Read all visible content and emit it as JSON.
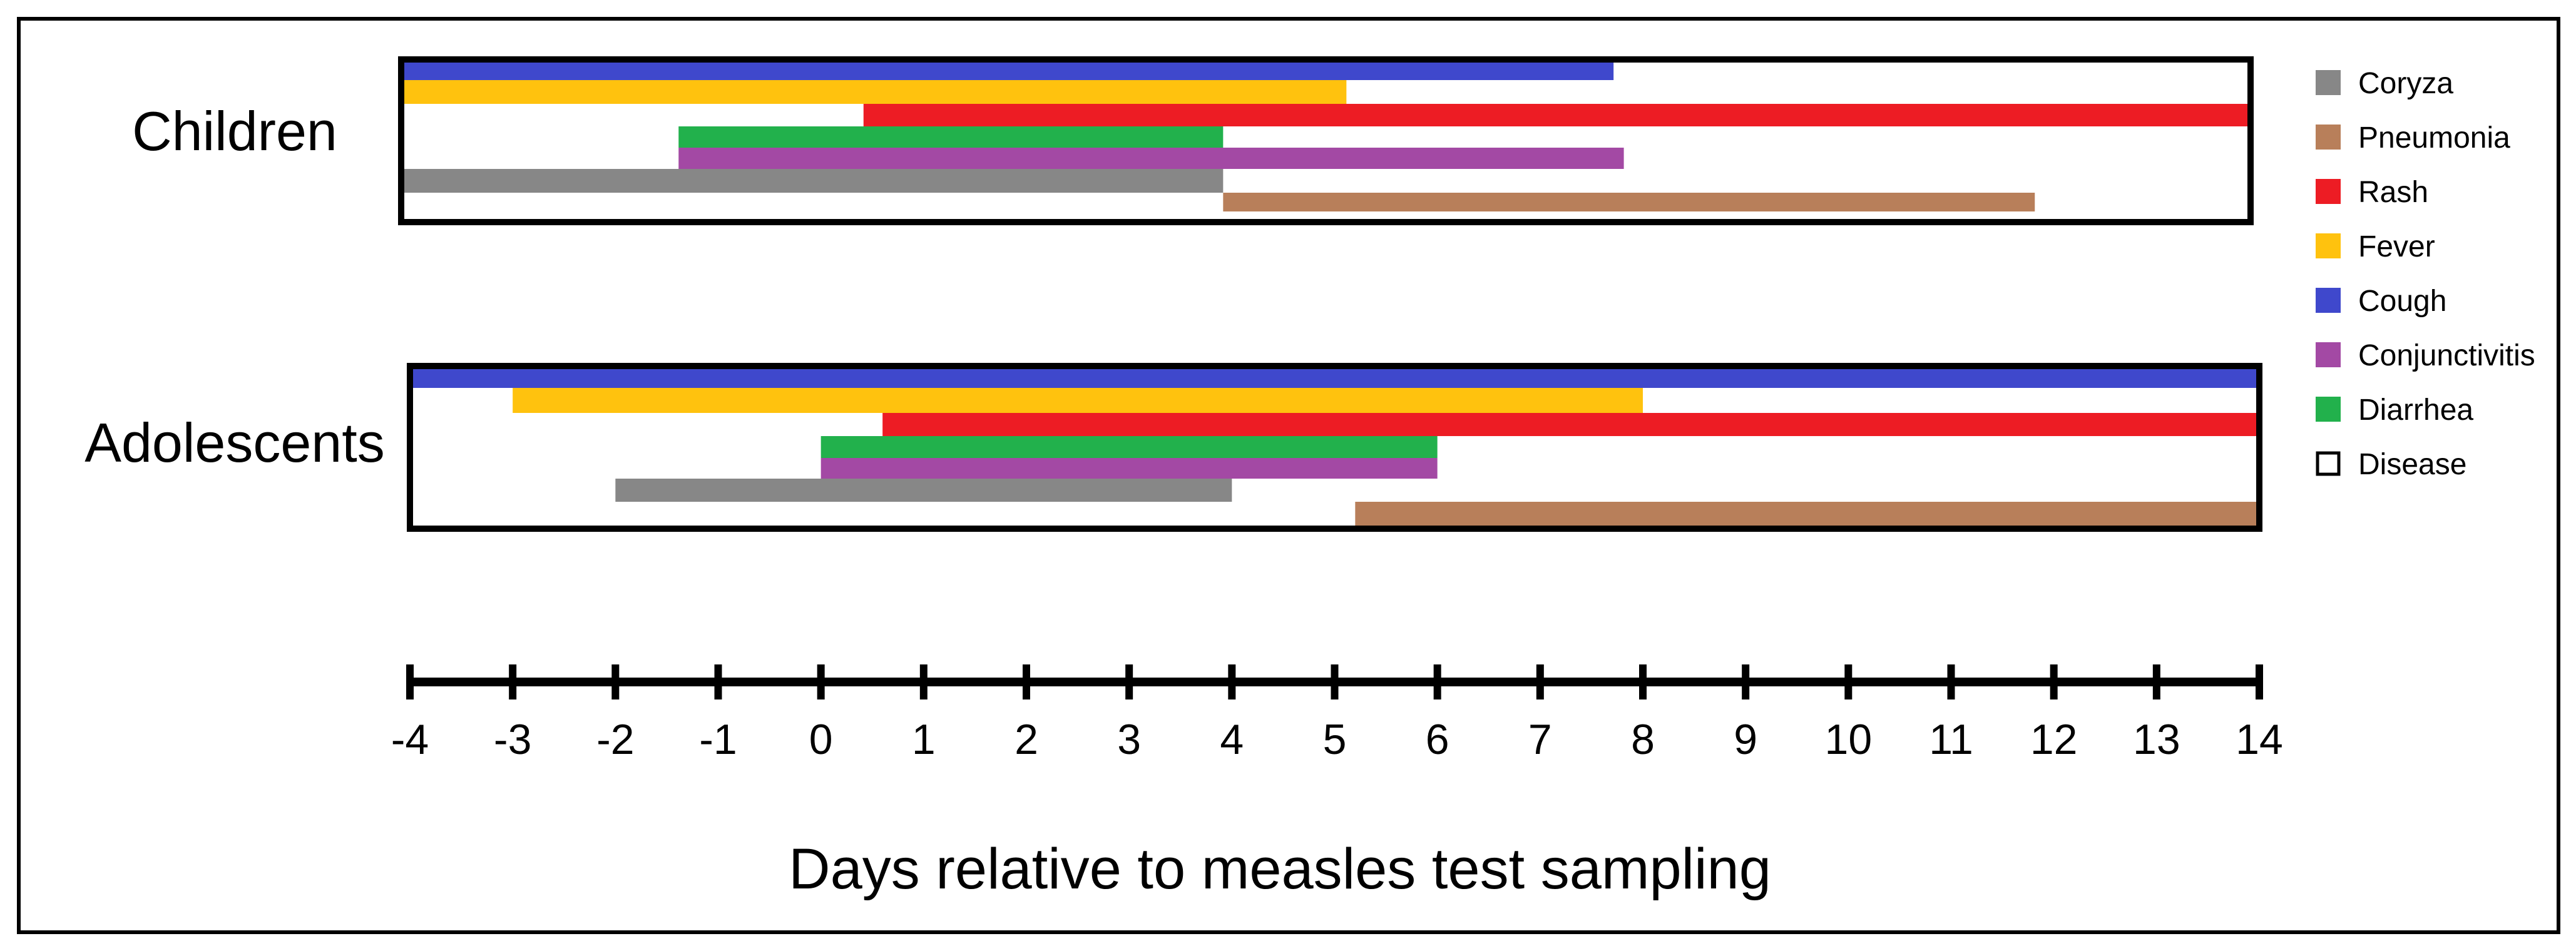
{
  "chart_data": {
    "type": "gantt",
    "xlabel": "Days relative to measles test sampling",
    "xlim": [
      -4,
      14
    ],
    "ticks": [
      "-4",
      "-3",
      "-2",
      "-1",
      "0",
      "1",
      "2",
      "3",
      "4",
      "5",
      "6",
      "7",
      "8",
      "9",
      "10",
      "11",
      "12",
      "13",
      "14"
    ],
    "legend": [
      {
        "name": "Coryza",
        "color": "#878787",
        "swatch": "filled"
      },
      {
        "name": "Pneumonia",
        "color": "#b87f5a",
        "swatch": "filled"
      },
      {
        "name": "Rash",
        "color": "#ed1c24",
        "swatch": "filled"
      },
      {
        "name": "Fever",
        "color": "#ffc20e",
        "swatch": "filled"
      },
      {
        "name": "Cough",
        "color": "#3f48cc",
        "swatch": "filled"
      },
      {
        "name": "Conjunctivitis",
        "color": "#a349a4",
        "swatch": "filled"
      },
      {
        "name": "Diarrhea",
        "color": "#22b14c",
        "swatch": "filled"
      },
      {
        "name": "Disease",
        "color": "#ffffff",
        "swatch": "outline"
      }
    ],
    "groups": [
      {
        "label": "Children",
        "disease": [
          -4,
          14
        ],
        "bars": [
          {
            "symptom": "Cough",
            "start": -4,
            "end": 7.8
          },
          {
            "symptom": "Fever",
            "start": -4,
            "end": 5.2
          },
          {
            "symptom": "Rash",
            "start": 0.5,
            "end": 14
          },
          {
            "symptom": "Diarrhea",
            "start": -1.3,
            "end": 4
          },
          {
            "symptom": "Conjunctivitis",
            "start": -1.3,
            "end": 7.9
          },
          {
            "symptom": "Coryza",
            "start": -4,
            "end": 4
          },
          {
            "symptom": "Pneumonia",
            "start": 4,
            "end": 11.9
          }
        ]
      },
      {
        "label": "Adolescents",
        "disease": [
          -4,
          14
        ],
        "bars": [
          {
            "symptom": "Cough",
            "start": -4,
            "end": 14
          },
          {
            "symptom": "Fever",
            "start": -3,
            "end": 8
          },
          {
            "symptom": "Rash",
            "start": 0.6,
            "end": 14
          },
          {
            "symptom": "Diarrhea",
            "start": 0,
            "end": 6
          },
          {
            "symptom": "Conjunctivitis",
            "start": 0,
            "end": 6
          },
          {
            "symptom": "Coryza",
            "start": -2,
            "end": 4
          },
          {
            "symptom": "Pneumonia",
            "start": 5.2,
            "end": 14
          }
        ]
      }
    ]
  }
}
